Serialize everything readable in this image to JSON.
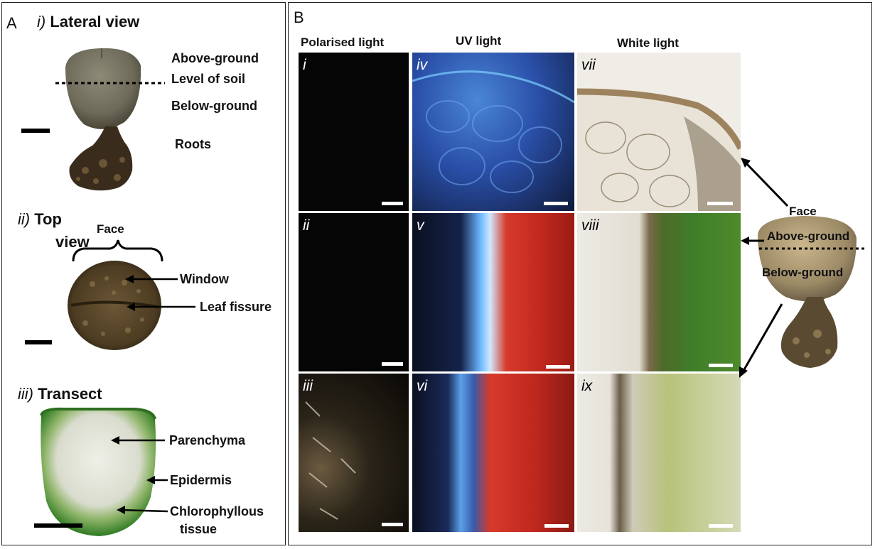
{
  "panelA": {
    "letter": "A",
    "lateral": {
      "numeral": "i)",
      "title": "Lateral view",
      "labels": [
        "Above-ground",
        "Level of soil",
        "Below-ground",
        "Roots"
      ]
    },
    "top": {
      "numeral": "ii)",
      "title_line1": "Top",
      "title_line2": "view",
      "face": "Face",
      "labels": [
        "Window",
        "Leaf fissure"
      ]
    },
    "transect": {
      "numeral": "iii)",
      "title": "Transect",
      "labels": [
        "Parenchyma",
        "Epidermis",
        "Chlorophyllous",
        "tissue"
      ]
    }
  },
  "panelB": {
    "letter": "B",
    "columns": [
      "Polarised light",
      "UV light",
      "White light"
    ],
    "cells": [
      "i",
      "iv",
      "vii",
      "ii",
      "v",
      "viii",
      "iii",
      "vi",
      "ix"
    ],
    "side": {
      "face": "Face",
      "above": "Above-ground",
      "below": "Below-ground"
    }
  },
  "colors": {
    "uv_blue": "#2a4fa8",
    "uv_red": "#d63a2a",
    "plant_green": "#3f7d2a",
    "white_light_bg": "#e8e3d6"
  }
}
